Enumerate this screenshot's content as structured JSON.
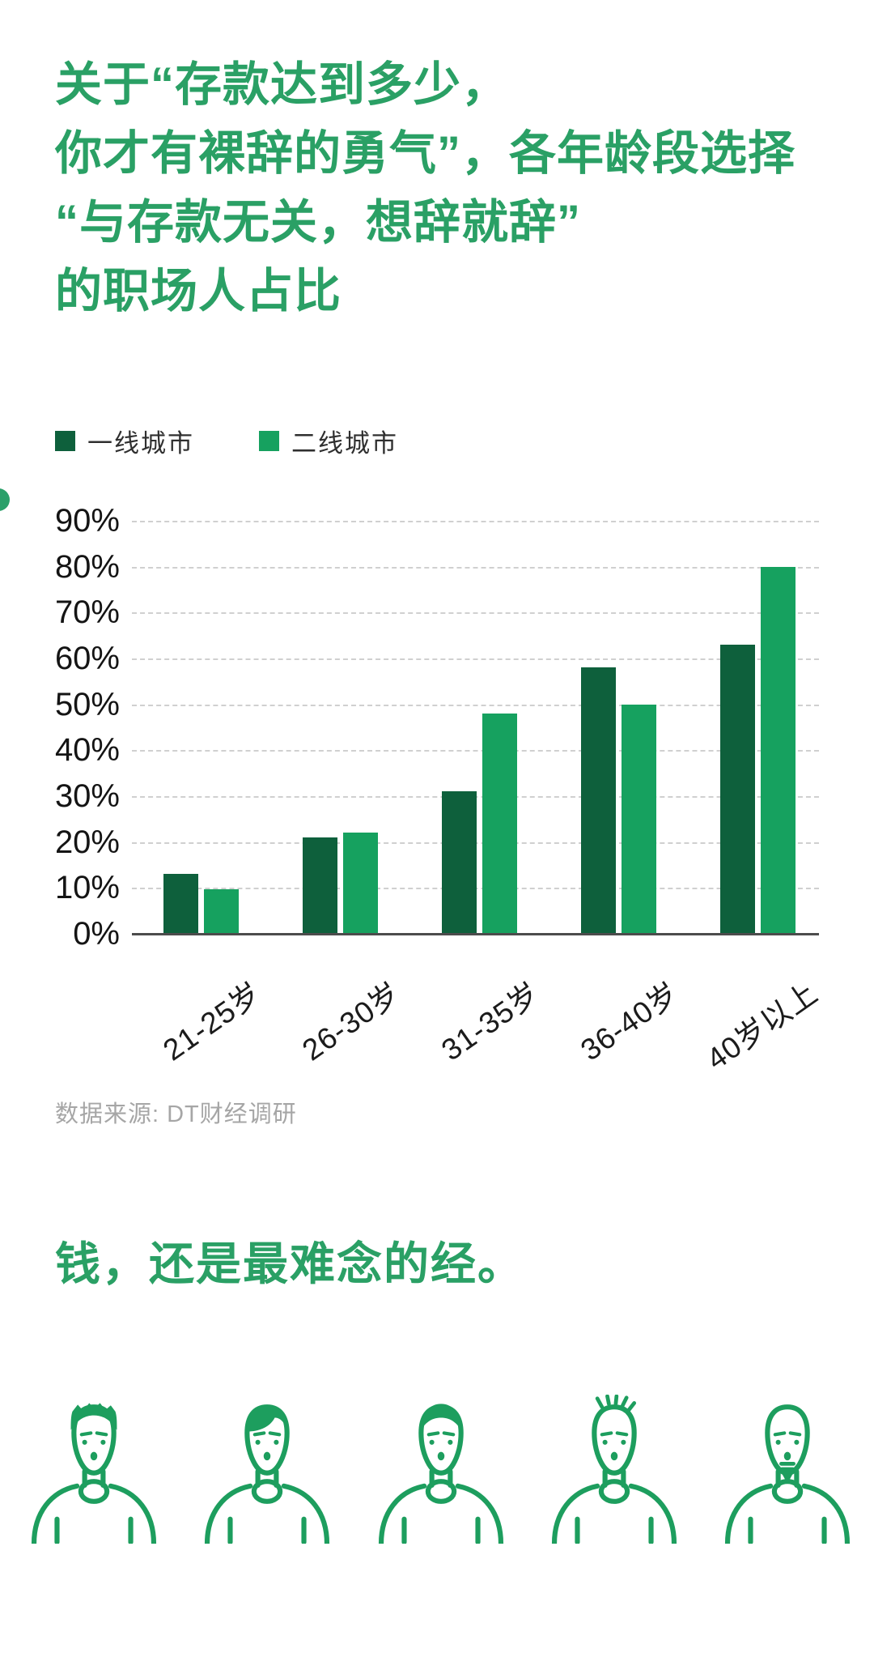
{
  "page": {
    "title_lines": [
      "关于“存款达到多少，",
      "你才有裸辞的勇气”，各年龄段选择",
      "“与存款无关，想辞就辞”",
      "的职场人占比"
    ],
    "headline": "钱，还是最难念的经。",
    "source": "数据来源: DT财经调研"
  },
  "colors": {
    "title_green": "#2aa065",
    "series_dark": "#0e603c",
    "series_light": "#16a15f",
    "edge_dot": "#2aa06a",
    "figure_green": "#1d9e5e",
    "gridline": "#d0d0d0",
    "axis": "#4c4c4c"
  },
  "chart_data": {
    "type": "bar",
    "title": "关于“存款达到多少，你才有裸辞的勇气”，各年龄段选择“与存款无关，想辞就辞”的职场人占比",
    "categories": [
      "21-25岁",
      "26-30岁",
      "31-35岁",
      "36-40岁",
      "40岁以上"
    ],
    "series": [
      {
        "name": "一线城市",
        "color": "#0e603c",
        "values": [
          13,
          21,
          31,
          58,
          63
        ]
      },
      {
        "name": "二线城市",
        "color": "#16a15f",
        "values": [
          9.7,
          22,
          48,
          50,
          80
        ]
      }
    ],
    "xlabel": "",
    "ylabel": "",
    "ylim": [
      0,
      90
    ],
    "ytick_step": 10,
    "ytick_suffix": "%",
    "grid": true,
    "legend_position": "top-left",
    "source": "数据来源: DT财经调研"
  },
  "figures": {
    "count": 5,
    "styles": [
      "flat-top-hair",
      "side-swept-hair",
      "round-cap-hair",
      "spiky-hair",
      "bald-goatee"
    ]
  }
}
